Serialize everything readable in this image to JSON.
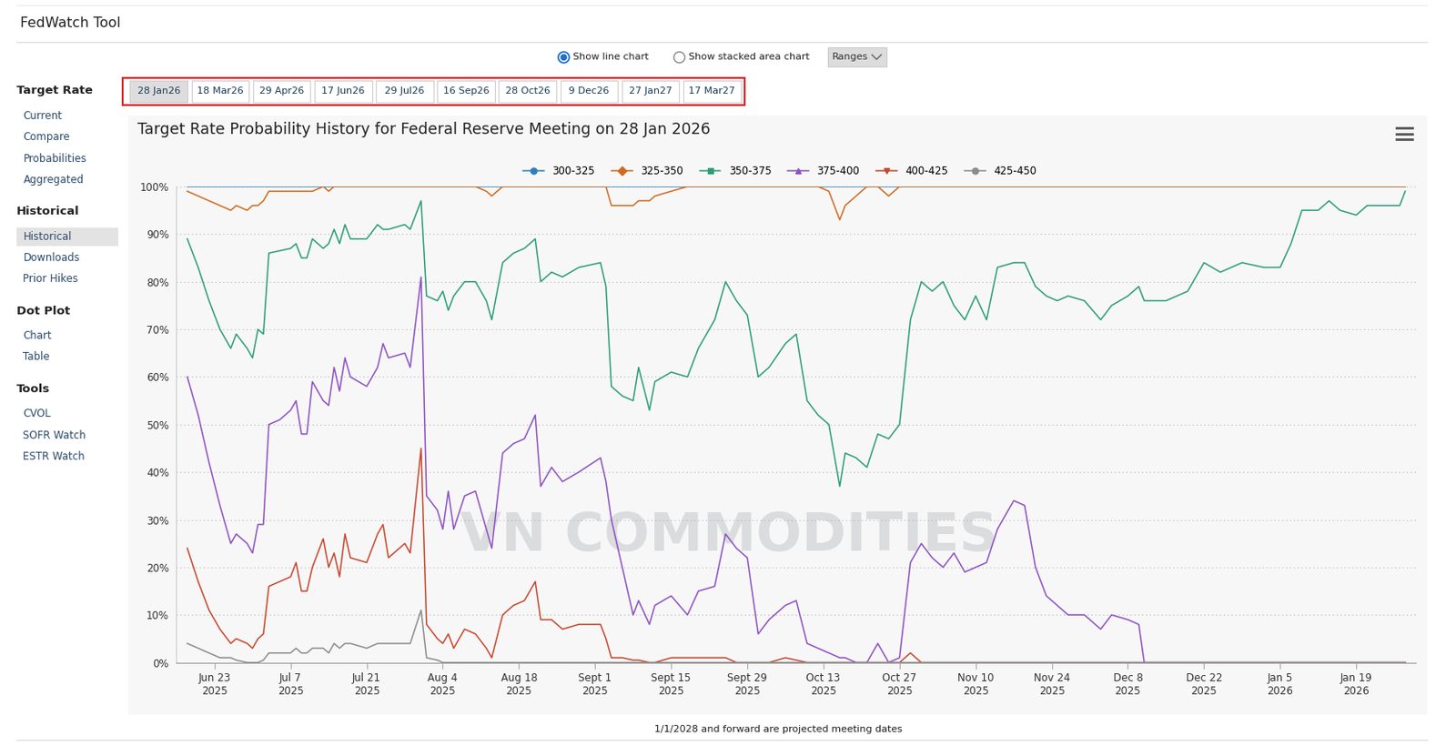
{
  "page": {
    "header": {
      "title": "FedWatch Tool"
    },
    "controls": {
      "options": [
        "Show line chart",
        "Show stacked area chart"
      ],
      "selected": "Show line chart",
      "dropdown": "Ranges"
    },
    "meetings": {
      "dates": [
        "28 Jan26",
        "18 Mar26",
        "29 Apr26",
        "17 Jun26",
        "29 Jul26",
        "16 Sep26",
        "28 Oct26",
        "9 Dec26",
        "27 Jan27",
        "17 Mar27"
      ],
      "selected": "28 Jan26"
    },
    "sidebar": [
      {
        "heading": "Target Rate",
        "items": [
          "Current",
          "Compare",
          "Probabilities",
          "Aggregated"
        ]
      },
      {
        "heading": "Historical",
        "items": [
          "Historical",
          "Downloads",
          "Prior Hikes"
        ]
      },
      {
        "heading": "Dot Plot",
        "items": [
          "Chart",
          "Table"
        ]
      },
      {
        "heading": "Tools",
        "items": [
          "CVOL",
          "SOFR Watch",
          "ESTR Watch"
        ]
      }
    ],
    "sidebar_selected": "Historical",
    "watermark": "VN COMMODITIES",
    "footnote": "1/1/2028 and forward are projected meeting dates"
  },
  "chart_data": {
    "type": "line",
    "title": "Target Rate Probability History for Federal Reserve Meeting on 28 Jan 2026",
    "x": [
      "2025-06-18",
      "2025-06-20",
      "2025-06-22",
      "2025-06-24",
      "2025-06-26",
      "2025-06-27",
      "2025-06-29",
      "2025-06-30",
      "2025-07-01",
      "2025-07-02",
      "2025-07-03",
      "2025-07-05",
      "2025-07-07",
      "2025-07-08",
      "2025-07-09",
      "2025-07-10",
      "2025-07-11",
      "2025-07-13",
      "2025-07-14",
      "2025-07-15",
      "2025-07-16",
      "2025-07-17",
      "2025-07-18",
      "2025-07-21",
      "2025-07-23",
      "2025-07-24",
      "2025-07-25",
      "2025-07-28",
      "2025-07-29",
      "2025-07-31",
      "2025-08-01",
      "2025-08-03",
      "2025-08-04",
      "2025-08-05",
      "2025-08-06",
      "2025-08-08",
      "2025-08-10",
      "2025-08-12",
      "2025-08-13",
      "2025-08-15",
      "2025-08-17",
      "2025-08-19",
      "2025-08-21",
      "2025-08-22",
      "2025-08-24",
      "2025-08-26",
      "2025-08-29",
      "2025-09-02",
      "2025-09-03",
      "2025-09-04",
      "2025-09-06",
      "2025-09-08",
      "2025-09-09",
      "2025-09-11",
      "2025-09-12",
      "2025-09-15",
      "2025-09-18",
      "2025-09-20",
      "2025-09-23",
      "2025-09-25",
      "2025-09-27",
      "2025-09-29",
      "2025-10-01",
      "2025-10-03",
      "2025-10-06",
      "2025-10-08",
      "2025-10-10",
      "2025-10-12",
      "2025-10-14",
      "2025-10-16",
      "2025-10-17",
      "2025-10-19",
      "2025-10-21",
      "2025-10-23",
      "2025-10-25",
      "2025-10-27",
      "2025-10-29",
      "2025-10-31",
      "2025-11-02",
      "2025-11-04",
      "2025-11-06",
      "2025-11-08",
      "2025-11-10",
      "2025-11-12",
      "2025-11-14",
      "2025-11-17",
      "2025-11-19",
      "2025-11-21",
      "2025-11-23",
      "2025-11-25",
      "2025-11-27",
      "2025-11-30",
      "2025-12-03",
      "2025-12-05",
      "2025-12-08",
      "2025-12-10",
      "2025-12-11",
      "2025-12-15",
      "2025-12-19",
      "2025-12-22",
      "2025-12-25",
      "2025-12-29",
      "2026-01-02",
      "2026-01-05",
      "2026-01-07",
      "2026-01-09",
      "2026-01-12",
      "2026-01-14",
      "2026-01-16",
      "2026-01-19",
      "2026-01-21",
      "2026-01-25",
      "2026-01-27",
      "2026-01-28"
    ],
    "series": [
      {
        "name": "300-325",
        "color": "#2f7ebc",
        "marker": "circle",
        "values": [
          100,
          100,
          100,
          100,
          100,
          100,
          100,
          100,
          100,
          100,
          100,
          100,
          100,
          100,
          100,
          100,
          100,
          100,
          100,
          100,
          100,
          100,
          100,
          100,
          100,
          100,
          100,
          100,
          100,
          100,
          100,
          100,
          100,
          100,
          100,
          100,
          100,
          100,
          100,
          100,
          100,
          100,
          100,
          100,
          100,
          100,
          100,
          100,
          100,
          100,
          100,
          100,
          100,
          100,
          100,
          100,
          100,
          100,
          100,
          100,
          100,
          100,
          100,
          100,
          100,
          100,
          100,
          100,
          100,
          100,
          100,
          100,
          100,
          100,
          100,
          100,
          100,
          100,
          100,
          100,
          100,
          100,
          100,
          100,
          100,
          100,
          100,
          100,
          100,
          100,
          100,
          100,
          100,
          100,
          100,
          100,
          100,
          100,
          100,
          100,
          100,
          100,
          100,
          100,
          100,
          100,
          100,
          100,
          100,
          100,
          100,
          100,
          100,
          100
        ]
      },
      {
        "name": "325-350",
        "color": "#d2691e",
        "marker": "diamond",
        "values": [
          99,
          98,
          97,
          96,
          95,
          96,
          95,
          96,
          96,
          97,
          99,
          99,
          99,
          99,
          99,
          99,
          99,
          100,
          99,
          100,
          100,
          100,
          100,
          100,
          100,
          100,
          100,
          100,
          100,
          100,
          100,
          100,
          100,
          100,
          100,
          100,
          100,
          99,
          98,
          100,
          100,
          100,
          100,
          100,
          100,
          100,
          100,
          100,
          100,
          96,
          96,
          96,
          97,
          97,
          98,
          99,
          100,
          100,
          100,
          100,
          100,
          100,
          100,
          100,
          100,
          100,
          100,
          100,
          99,
          93,
          96,
          98,
          100,
          100,
          98,
          100,
          100,
          100,
          100,
          100,
          100,
          100,
          100,
          100,
          100,
          100,
          100,
          100,
          100,
          100,
          100,
          100,
          100,
          100,
          100,
          100,
          100,
          100,
          100,
          100,
          100,
          100,
          100,
          100,
          100,
          100,
          100,
          100,
          100,
          100,
          100,
          100,
          100,
          100
        ]
      },
      {
        "name": "350-375",
        "color": "#2a9d78",
        "marker": "square",
        "values": [
          89,
          83,
          76,
          70,
          66,
          69,
          66,
          64,
          70,
          69,
          86,
          86.5,
          87,
          88,
          85,
          85,
          89,
          87,
          88,
          91,
          88,
          92,
          89,
          89,
          92,
          91,
          91,
          92,
          91,
          97,
          77,
          76,
          78,
          74,
          77,
          80,
          80,
          76,
          72,
          84,
          86,
          87,
          89,
          80,
          82,
          81,
          83,
          84,
          79,
          58,
          56,
          55,
          62,
          53,
          59,
          61,
          60,
          66,
          72,
          80,
          76,
          73,
          60,
          62,
          67,
          69,
          55,
          52,
          50,
          37,
          44,
          43,
          41,
          48,
          47,
          50,
          72,
          80,
          78,
          80,
          75,
          72,
          77,
          72,
          83,
          84,
          84,
          79,
          77,
          76,
          77,
          76,
          72,
          75,
          77,
          79,
          76,
          76,
          78,
          84,
          82,
          84,
          83,
          83,
          88,
          95,
          95,
          97,
          95,
          94,
          96,
          96,
          96,
          99
        ]
      },
      {
        "name": "375-400",
        "color": "#8e50c4",
        "marker": "triangle_up",
        "values": [
          60,
          52,
          42,
          33,
          25,
          27,
          25,
          23,
          29,
          29,
          50,
          51,
          53,
          55,
          48,
          48,
          59,
          55,
          54,
          62,
          57,
          64,
          60,
          58,
          62,
          67,
          64,
          65,
          62,
          81,
          35,
          32,
          28,
          36,
          28,
          35,
          36,
          28,
          24,
          44,
          46,
          47,
          52,
          37,
          41,
          38,
          40,
          43,
          38,
          30,
          20,
          10,
          13,
          8,
          12,
          14,
          10,
          15,
          16,
          27,
          24,
          22,
          6,
          9,
          12,
          13,
          4,
          3,
          2,
          1,
          1,
          0,
          0,
          4,
          0,
          1,
          21,
          25,
          22,
          20,
          23,
          19,
          20,
          21,
          28,
          34,
          33,
          20,
          14,
          12,
          10,
          10,
          7,
          10,
          9,
          8,
          0,
          0,
          0,
          0,
          0,
          0,
          0,
          0,
          0,
          0,
          0,
          0,
          0,
          0,
          0,
          0,
          0,
          0
        ]
      },
      {
        "name": "400-425",
        "color": "#c9462c",
        "marker": "triangle_down",
        "values": [
          24,
          17,
          11,
          7,
          4,
          5,
          4,
          3,
          5,
          6,
          16,
          17,
          18,
          21,
          15,
          15,
          20,
          26,
          20,
          23,
          18,
          27,
          22,
          21,
          27,
          29,
          22,
          25,
          23,
          45,
          8,
          5,
          4,
          6,
          3,
          7,
          6,
          3,
          1,
          10,
          12,
          13,
          17,
          9,
          9,
          7,
          8,
          8,
          5,
          1,
          1,
          0.5,
          0.5,
          0,
          0,
          1,
          1,
          1,
          1,
          1,
          0,
          0,
          0,
          0,
          1,
          0.5,
          0,
          0,
          0,
          0,
          0,
          0,
          0,
          0,
          0,
          0,
          2,
          0,
          0,
          0,
          0,
          0,
          0,
          0,
          0,
          0,
          0,
          0,
          0,
          0,
          0,
          0,
          0,
          0,
          0,
          0,
          0,
          0,
          0,
          0,
          0,
          0,
          0,
          0,
          0,
          0,
          0,
          0,
          0,
          0,
          0,
          0,
          0,
          0
        ]
      },
      {
        "name": "425-450",
        "color": "#8c8c8c",
        "marker": "circle",
        "values": [
          4,
          3,
          2,
          1,
          1,
          0.5,
          0,
          0,
          0,
          0.5,
          2,
          2,
          2,
          3,
          2,
          2,
          3,
          3,
          2,
          4,
          3,
          4,
          4,
          3,
          4,
          4,
          4,
          4,
          4,
          11,
          1,
          0.5,
          0,
          0,
          0,
          0,
          0,
          0,
          0,
          0,
          0,
          0,
          0,
          0,
          0,
          0,
          0,
          0,
          0,
          0,
          0,
          0,
          0,
          0,
          0,
          0,
          0,
          0,
          0,
          0,
          0,
          0,
          0,
          0,
          0,
          0,
          0,
          0,
          0,
          0,
          0,
          0,
          0,
          0,
          0,
          0,
          0,
          0,
          0,
          0,
          0,
          0,
          0,
          0,
          0,
          0,
          0,
          0,
          0,
          0,
          0,
          0,
          0,
          0,
          0,
          0,
          0,
          0,
          0,
          0,
          0,
          0,
          0,
          0,
          0,
          0,
          0,
          0,
          0,
          0,
          0,
          0,
          0,
          0
        ]
      }
    ],
    "xlim": [
      "2025-06-16",
      "2026-01-30"
    ],
    "xticks": [
      {
        "value": "2025-06-23",
        "label": "Jun 23\n2025"
      },
      {
        "value": "2025-07-07",
        "label": "Jul 7\n2025"
      },
      {
        "value": "2025-07-21",
        "label": "Jul 21\n2025"
      },
      {
        "value": "2025-08-04",
        "label": "Aug 4\n2025"
      },
      {
        "value": "2025-08-18",
        "label": "Aug 18\n2025"
      },
      {
        "value": "2025-09-01",
        "label": "Sept 1\n2025"
      },
      {
        "value": "2025-09-15",
        "label": "Sept 15\n2025"
      },
      {
        "value": "2025-09-29",
        "label": "Sept 29\n2025"
      },
      {
        "value": "2025-10-13",
        "label": "Oct 13\n2025"
      },
      {
        "value": "2025-10-27",
        "label": "Oct 27\n2025"
      },
      {
        "value": "2025-11-10",
        "label": "Nov 10\n2025"
      },
      {
        "value": "2025-11-24",
        "label": "Nov 24\n2025"
      },
      {
        "value": "2025-12-08",
        "label": "Dec 8\n2025"
      },
      {
        "value": "2025-12-22",
        "label": "Dec 22\n2025"
      },
      {
        "value": "2026-01-05",
        "label": "Jan 5\n2026"
      },
      {
        "value": "2026-01-19",
        "label": "Jan 19\n2026"
      }
    ],
    "ylim": [
      0,
      100
    ],
    "yticks": [
      {
        "value": 0,
        "label": "0%"
      },
      {
        "value": 10,
        "label": "10%"
      },
      {
        "value": 20,
        "label": "20%"
      },
      {
        "value": 30,
        "label": "30%"
      },
      {
        "value": 40,
        "label": "40%"
      },
      {
        "value": 50,
        "label": "50%"
      },
      {
        "value": 60,
        "label": "60%"
      },
      {
        "value": 70,
        "label": "70%"
      },
      {
        "value": 80,
        "label": "80%"
      },
      {
        "value": 90,
        "label": "90%"
      },
      {
        "value": 100,
        "label": "100%"
      }
    ],
    "grid": true,
    "legend": "upper center"
  }
}
